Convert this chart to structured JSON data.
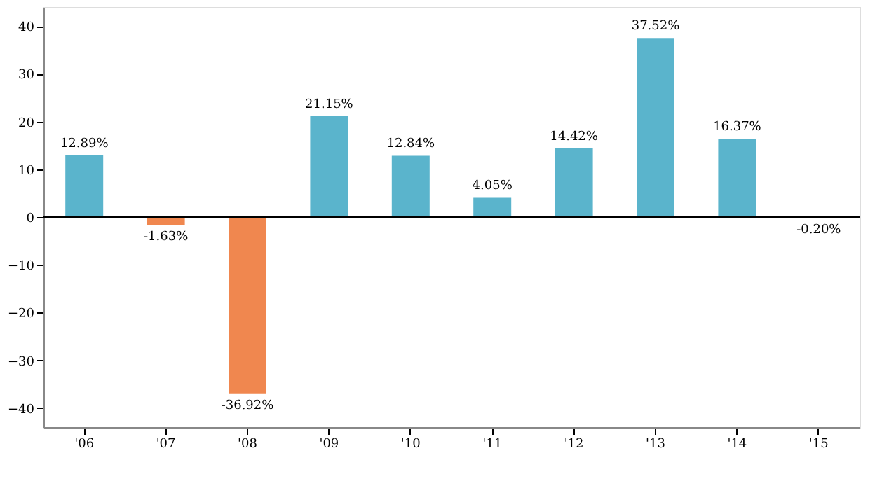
{
  "chart_data": {
    "type": "bar",
    "categories": [
      "'06",
      "'07",
      "'08",
      "'09",
      "'10",
      "'11",
      "'12",
      "'13",
      "'14",
      "'15"
    ],
    "values": [
      12.89,
      -1.63,
      -36.92,
      21.15,
      12.84,
      4.05,
      14.42,
      37.52,
      16.37,
      -0.2
    ],
    "value_labels": [
      "12.89%",
      "-1.63%",
      "-36.92%",
      "21.15%",
      "12.84%",
      "4.05%",
      "14.42%",
      "37.52%",
      "16.37%",
      "-0.20%"
    ],
    "colors": [
      "#5ab4cc",
      "#f0874f",
      "#f0874f",
      "#5ab4cc",
      "#5ab4cc",
      "#5ab4cc",
      "#5ab4cc",
      "#5ab4cc",
      "#5ab4cc",
      "#f0874f"
    ],
    "ylim": [
      -44,
      44
    ],
    "yticks": [
      -40,
      -30,
      -20,
      -10,
      0,
      10,
      20,
      30,
      40
    ],
    "ref_lines": [
      {
        "axis": "y",
        "value": 0,
        "color": "#000000"
      }
    ],
    "grid": false
  }
}
